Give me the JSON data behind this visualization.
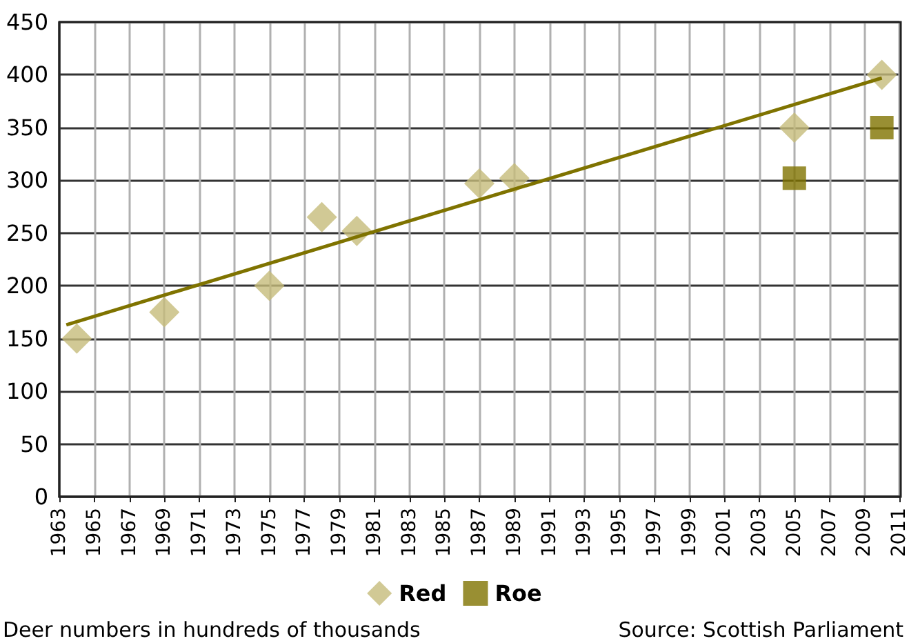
{
  "chart_data": {
    "type": "scatter",
    "xlim": [
      1963,
      2011
    ],
    "xticks": [
      1963,
      1965,
      1967,
      1969,
      1971,
      1973,
      1975,
      1977,
      1979,
      1981,
      1983,
      1985,
      1987,
      1989,
      1991,
      1993,
      1995,
      1997,
      1999,
      2001,
      2003,
      2005,
      2007,
      2009,
      2011
    ],
    "ylim": [
      0,
      450
    ],
    "yticks": [
      0,
      50,
      100,
      150,
      200,
      250,
      300,
      350,
      400,
      450
    ],
    "grid": true,
    "legend": "bottom",
    "series": [
      {
        "name": "Red",
        "color": "#c6bb7b",
        "marker": "diamond",
        "x": [
          1964,
          1969,
          1975,
          1978,
          1980,
          1987,
          1989,
          2005,
          2010
        ],
        "values": [
          150,
          175,
          200,
          265,
          252,
          297,
          302,
          350,
          400
        ]
      },
      {
        "name": "Roe",
        "color": "#7f7300",
        "marker": "square",
        "x": [
          2005,
          2010
        ],
        "values": [
          302,
          350
        ]
      },
      {
        "type": "line",
        "color": "#7f7300",
        "marker": "none",
        "line_style": "solid",
        "x": [
          1963.4,
          2010
        ],
        "values": [
          163,
          397
        ]
      }
    ],
    "annotations": [
      "Deer numbers in hundreds of thousands",
      "Source: Scottish Parliament"
    ]
  }
}
